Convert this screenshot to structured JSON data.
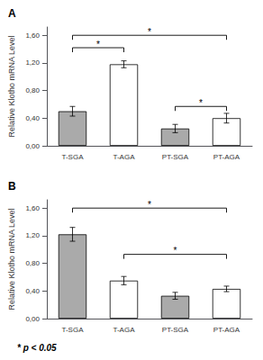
{
  "chart_data": [
    {
      "type": "bar",
      "title": "A",
      "categories": [
        "T-SGA",
        "T-AGA",
        "PT-SGA",
        "PT-AGA"
      ],
      "values": [
        0.5,
        1.18,
        0.25,
        0.4
      ],
      "errors": [
        0.07,
        0.05,
        0.06,
        0.07
      ],
      "colors": [
        "#aaaaaa",
        "#ffffff",
        "#aaaaaa",
        "#ffffff"
      ],
      "ylabel": "Relative Klotho mRNA Level",
      "ylim": [
        0,
        1.72
      ],
      "yticks": [
        {
          "value": 0.0,
          "label": "0,00"
        },
        {
          "value": 0.4,
          "label": "0,40"
        },
        {
          "value": 0.8,
          "label": "0,80"
        },
        {
          "value": 1.2,
          "label": "1,20"
        },
        {
          "value": 1.6,
          "label": "1,60"
        }
      ],
      "grid": false,
      "significance": [
        {
          "from": "T-SGA",
          "to": "T-AGA",
          "y": 1.42,
          "label": "*"
        },
        {
          "from": "T-SGA",
          "to": "PT-AGA",
          "y": 1.6,
          "label": "*"
        },
        {
          "from": "PT-SGA",
          "to": "PT-AGA",
          "y": 0.57,
          "label": "*"
        }
      ]
    },
    {
      "type": "bar",
      "title": "B",
      "categories": [
        "T-SGA",
        "T-AGA",
        "PT-SGA",
        "PT-AGA"
      ],
      "values": [
        1.22,
        0.55,
        0.33,
        0.43
      ],
      "errors": [
        0.1,
        0.06,
        0.05,
        0.04
      ],
      "colors": [
        "#aaaaaa",
        "#ffffff",
        "#aaaaaa",
        "#ffffff"
      ],
      "ylabel": "Relative Klotho mRNA Level",
      "ylim": [
        0,
        1.72
      ],
      "yticks": [
        {
          "value": 0.0,
          "label": "0,00"
        },
        {
          "value": 0.4,
          "label": "0,40"
        },
        {
          "value": 0.8,
          "label": "0,80"
        },
        {
          "value": 1.2,
          "label": "1,20"
        },
        {
          "value": 1.6,
          "label": "1,60"
        }
      ],
      "grid": false,
      "significance": [
        {
          "from": "T-SGA",
          "to": "PT-AGA",
          "y": 1.6,
          "label": "*"
        },
        {
          "from": "T-AGA",
          "to": "PT-AGA",
          "y": 0.93,
          "label": "*"
        }
      ]
    }
  ],
  "footnote": "* p < 0.05"
}
